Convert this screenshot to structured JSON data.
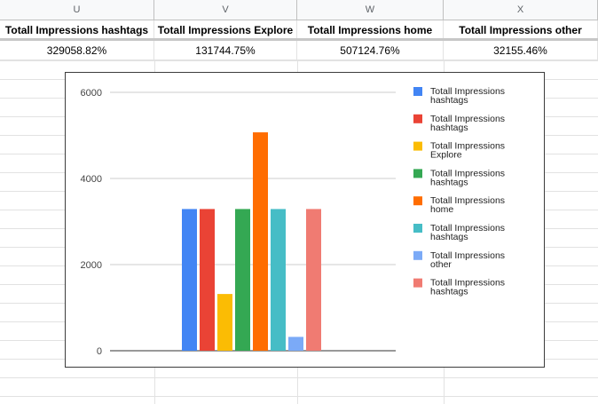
{
  "columns": [
    "U",
    "V",
    "W",
    "X"
  ],
  "headers": [
    "Totall  Impressions hashtags",
    "Totall  Impressions Explore",
    "Totall  Impressions home",
    "Totall  Impressions other"
  ],
  "values": [
    "329058.82%",
    "131744.75%",
    "507124.76%",
    "32155.46%"
  ],
  "chart_data": {
    "type": "bar",
    "title": "",
    "xlabel": "",
    "ylabel": "",
    "ylim": [
      0,
      6000
    ],
    "yticks": [
      "0",
      "2000",
      "4000",
      "6000"
    ],
    "grid": true,
    "legend_position": "right",
    "series": [
      {
        "name": "Totall  Impressions hashtags",
        "value": 3290.59,
        "color": "#4285f4"
      },
      {
        "name": "Totall  Impressions hashtags",
        "value": 3290.59,
        "color": "#ea4335"
      },
      {
        "name": "Totall  Impressions Explore",
        "value": 1317.45,
        "color": "#fbbc04"
      },
      {
        "name": "Totall  Impressions hashtags",
        "value": 3290.59,
        "color": "#34a853"
      },
      {
        "name": "Totall  Impressions home",
        "value": 5071.25,
        "color": "#ff6d01"
      },
      {
        "name": "Totall  Impressions hashtags",
        "value": 3290.59,
        "color": "#46bdc6"
      },
      {
        "name": "Totall  Impressions other",
        "value": 321.55,
        "color": "#7baaf7"
      },
      {
        "name": "Totall  Impressions hashtags",
        "value": 3290.59,
        "color": "#f07b72"
      }
    ]
  }
}
